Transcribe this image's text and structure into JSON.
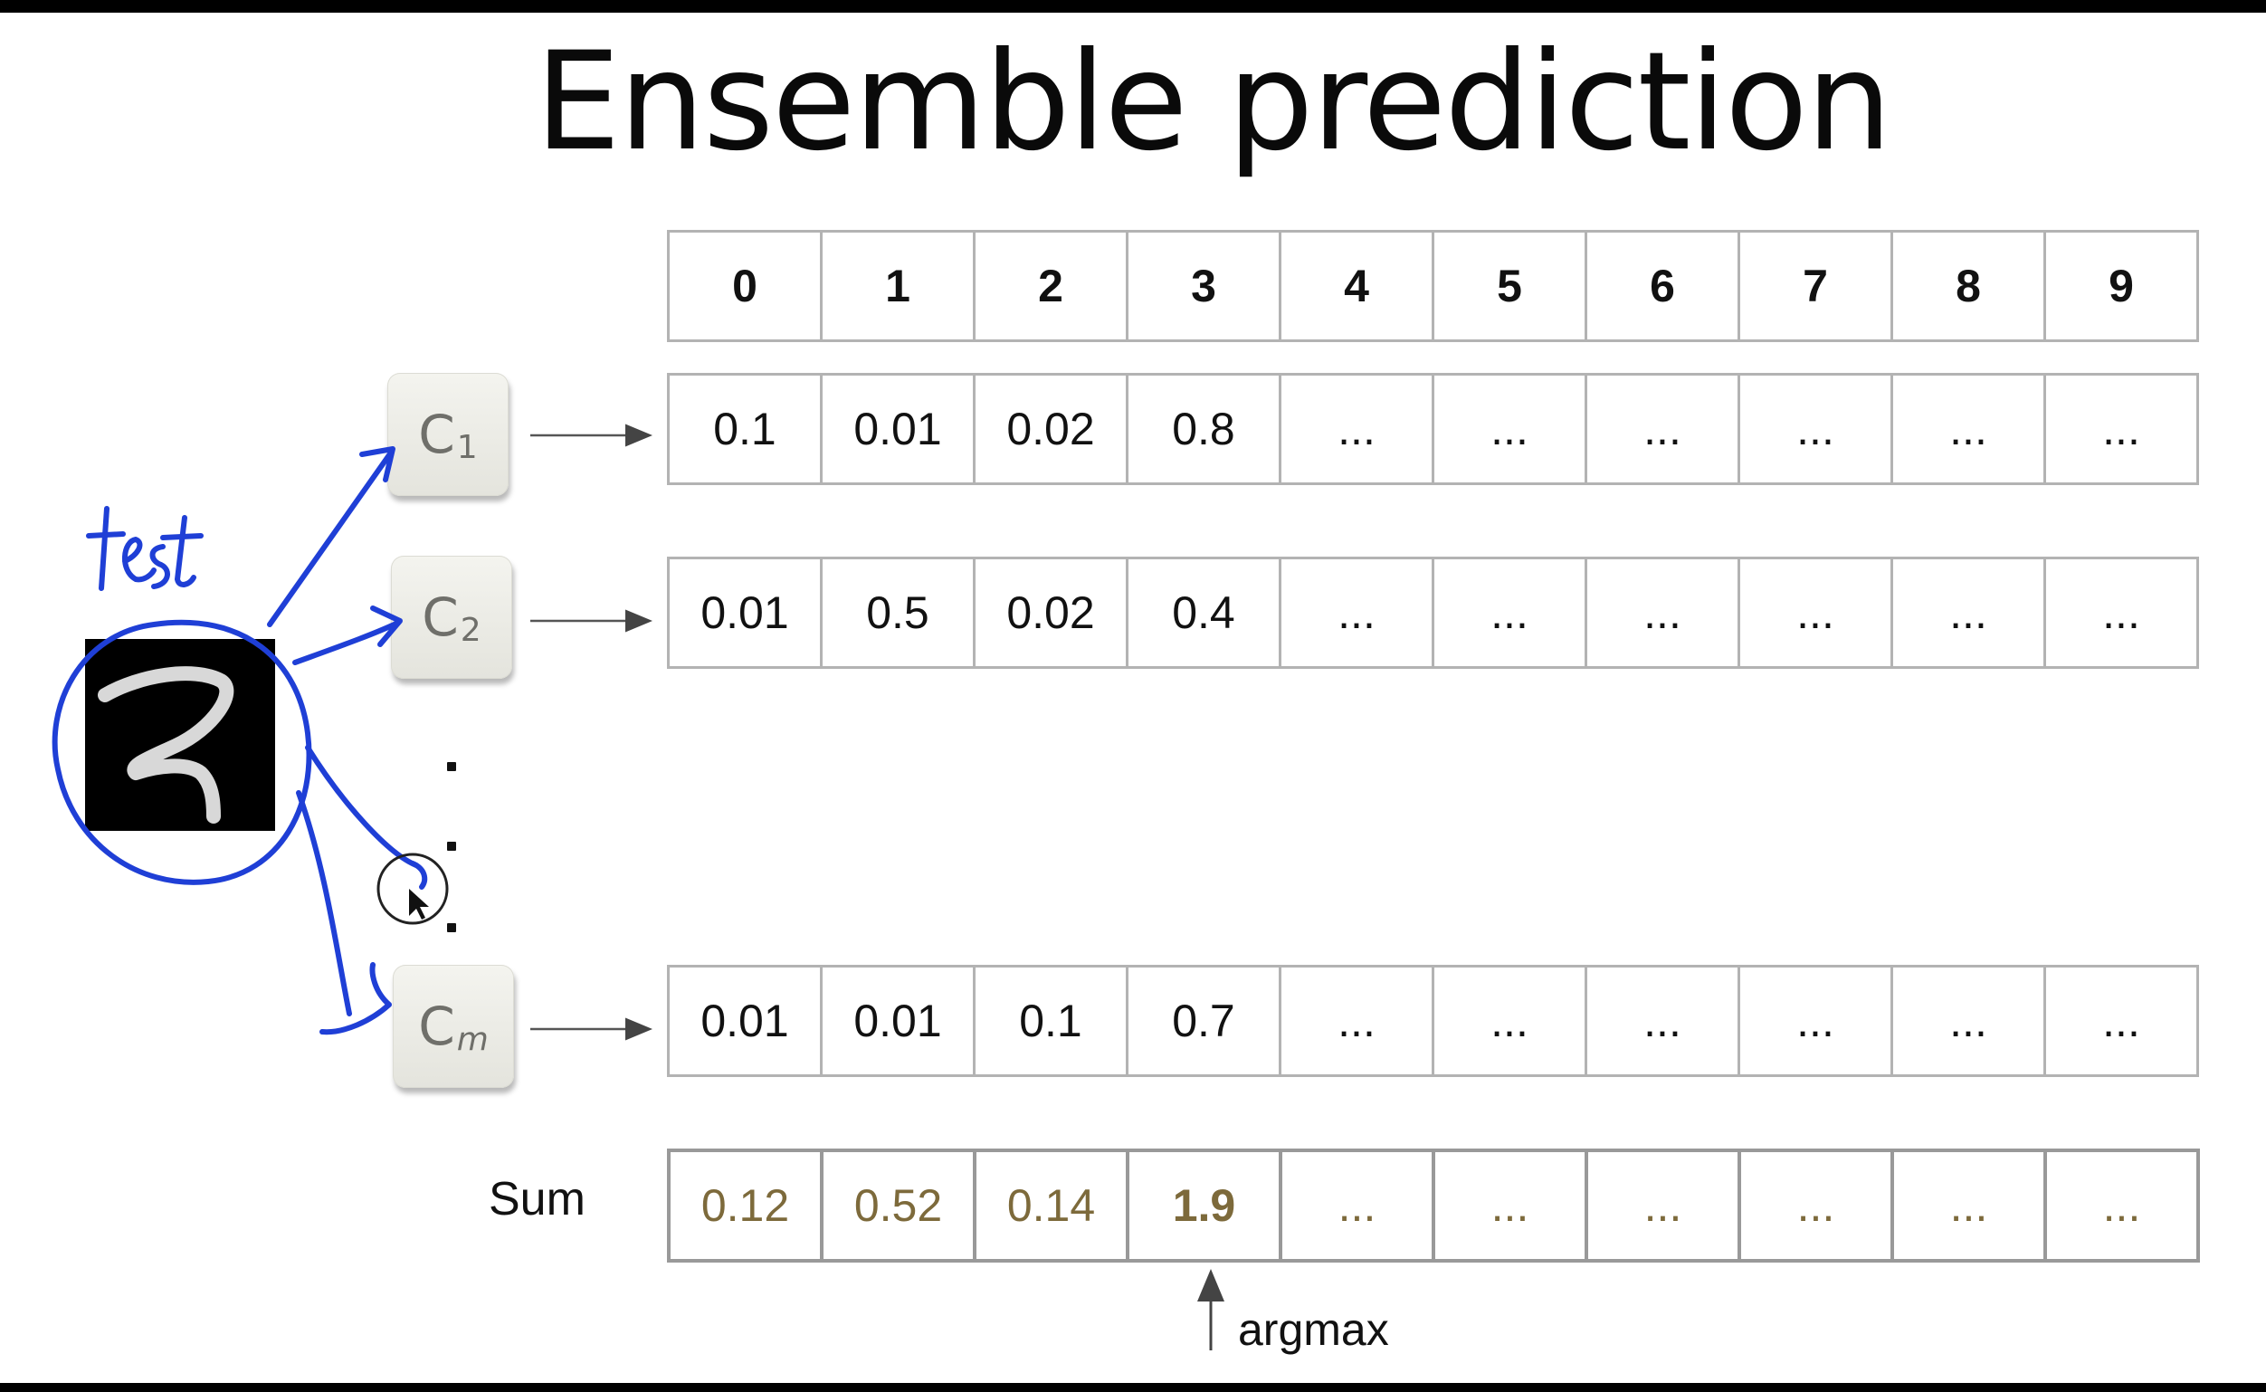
{
  "title": "Ensemble prediction",
  "header": [
    "0",
    "1",
    "2",
    "3",
    "4",
    "5",
    "6",
    "7",
    "8",
    "9"
  ],
  "classifiers": [
    {
      "label": "C",
      "subscript": "1",
      "scores": [
        "0.1",
        "0.01",
        "0.02",
        "0.8",
        "...",
        "...",
        "...",
        "...",
        "...",
        "..."
      ]
    },
    {
      "label": "C",
      "subscript": "2",
      "scores": [
        "0.01",
        "0.5",
        "0.02",
        "0.4",
        "...",
        "...",
        "...",
        "...",
        "...",
        "..."
      ]
    },
    {
      "label": "C",
      "subscript": "m",
      "scores": [
        "0.01",
        "0.01",
        "0.1",
        "0.7",
        "...",
        "...",
        "...",
        "...",
        "...",
        "..."
      ]
    }
  ],
  "sum": {
    "label": "Sum",
    "values": [
      "0.12",
      "0.52",
      "0.14",
      "1.9",
      "...",
      "...",
      "...",
      "...",
      "...",
      "..."
    ],
    "max_index": 3
  },
  "argmax_label": "argmax",
  "handwriting": "test",
  "colors": {
    "annotation": "#1f3fd6",
    "sum_text": "#7d6a3b",
    "grid": "#b3b3b3"
  }
}
